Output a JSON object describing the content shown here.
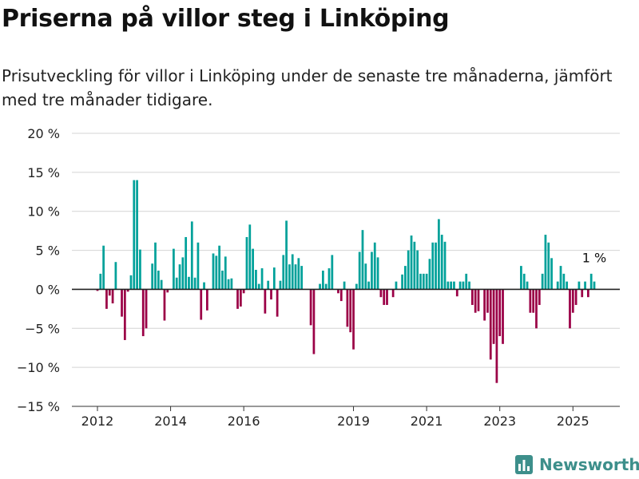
{
  "title": "Priserna på villor steg i Linköping",
  "subtitle": "Prisutveckling för villor i Linköping under de senaste tre månaderna, jämfört med tre månader tidigare.",
  "brand": {
    "name": "Newsworthy",
    "icon": "chart-logo-icon",
    "color": "#3d8f8b"
  },
  "colors": {
    "positive": "#00a19a",
    "negative": "#9b0046",
    "grid": "#d4d4d4",
    "zero": "#222222"
  },
  "chart_data": {
    "type": "bar",
    "title": "Priserna på villor steg i Linköping",
    "xlabel": "",
    "ylabel": "",
    "ylim": [
      -15,
      20
    ],
    "yticks": [
      20,
      15,
      10,
      5,
      0,
      -5,
      -10,
      -15
    ],
    "ytick_labels": [
      "20 %",
      "15 %",
      "10 %",
      "5 %",
      "0 %",
      "−5 %",
      "−10 %",
      "−15 %"
    ],
    "xtick_labels": [
      "2012",
      "2014",
      "2016",
      "2019",
      "2021",
      "2023",
      "2025"
    ],
    "xtick_years": [
      2012,
      2014,
      2016,
      2019,
      2021,
      2023,
      2025
    ],
    "x_start": "2012-01",
    "x_end": "2025-08",
    "grid": true,
    "annotation": {
      "text": "1 %",
      "month": "2025-08",
      "value": 1
    },
    "months": [
      "2012-01",
      "2012-02",
      "2012-03",
      "2012-04",
      "2012-05",
      "2012-06",
      "2012-07",
      "2012-08",
      "2012-09",
      "2012-10",
      "2012-11",
      "2012-12",
      "2013-01",
      "2013-02",
      "2013-03",
      "2013-04",
      "2013-05",
      "2013-06",
      "2013-07",
      "2013-08",
      "2013-09",
      "2013-10",
      "2013-11",
      "2013-12",
      "2014-01",
      "2014-02",
      "2014-03",
      "2014-04",
      "2014-05",
      "2014-06",
      "2014-07",
      "2014-08",
      "2014-09",
      "2014-10",
      "2014-11",
      "2014-12",
      "2015-01",
      "2015-02",
      "2015-03",
      "2015-04",
      "2015-05",
      "2015-06",
      "2015-07",
      "2015-08",
      "2015-09",
      "2015-10",
      "2015-11",
      "2015-12",
      "2016-01",
      "2016-02",
      "2016-03",
      "2016-04",
      "2016-05",
      "2016-06",
      "2016-07",
      "2016-08",
      "2016-09",
      "2016-10",
      "2016-11",
      "2016-12",
      "2017-01",
      "2017-02",
      "2017-03",
      "2017-04",
      "2017-05",
      "2017-06",
      "2017-07",
      "2017-08",
      "2017-09",
      "2017-10",
      "2017-11",
      "2017-12",
      "2018-01",
      "2018-02",
      "2018-03",
      "2018-04",
      "2018-05",
      "2018-06",
      "2018-07",
      "2018-08",
      "2018-09",
      "2018-10",
      "2018-11",
      "2018-12",
      "2019-01",
      "2019-02",
      "2019-03",
      "2019-04",
      "2019-05",
      "2019-06",
      "2019-07",
      "2019-08",
      "2019-09",
      "2019-10",
      "2019-11",
      "2019-12",
      "2020-01",
      "2020-02",
      "2020-03",
      "2020-04",
      "2020-05",
      "2020-06",
      "2020-07",
      "2020-08",
      "2020-09",
      "2020-10",
      "2020-11",
      "2020-12",
      "2021-01",
      "2021-02",
      "2021-03",
      "2021-04",
      "2021-05",
      "2021-06",
      "2021-07",
      "2021-08",
      "2021-09",
      "2021-10",
      "2021-11",
      "2021-12",
      "2022-01",
      "2022-02",
      "2022-03",
      "2022-04",
      "2022-05",
      "2022-06",
      "2022-07",
      "2022-08",
      "2022-09",
      "2022-10",
      "2022-11",
      "2022-12",
      "2023-01",
      "2023-02",
      "2023-03",
      "2023-04",
      "2023-05",
      "2023-06",
      "2023-07",
      "2023-08",
      "2023-09",
      "2023-10",
      "2023-11",
      "2023-12",
      "2024-01",
      "2024-02",
      "2024-03",
      "2024-04",
      "2024-05",
      "2024-06",
      "2024-07",
      "2024-08",
      "2024-09",
      "2024-10",
      "2024-11",
      "2024-12",
      "2025-01",
      "2025-02",
      "2025-03",
      "2025-04",
      "2025-05",
      "2025-06",
      "2025-07",
      "2025-08"
    ],
    "values": [
      -0.2,
      2.0,
      5.6,
      -2.5,
      -0.8,
      -1.8,
      3.5,
      0.0,
      -3.5,
      -6.5,
      -0.3,
      1.8,
      14.0,
      14.0,
      5.1,
      -6.0,
      -5.0,
      0.0,
      3.3,
      6.0,
      2.4,
      1.2,
      -4.0,
      -0.4,
      0.0,
      5.2,
      1.5,
      3.2,
      4.1,
      6.7,
      1.6,
      8.7,
      1.5,
      6.0,
      -3.9,
      0.9,
      -2.7,
      0.0,
      4.6,
      4.3,
      5.6,
      2.4,
      4.2,
      1.3,
      1.4,
      0.0,
      -2.5,
      -2.2,
      -0.5,
      6.7,
      8.3,
      5.2,
      2.5,
      0.7,
      2.7,
      -3.1,
      1.1,
      -1.3,
      2.8,
      -3.5,
      1.1,
      4.4,
      8.8,
      3.2,
      4.5,
      3.2,
      4.0,
      3.0,
      0.0,
      0.0,
      -4.6,
      -8.3,
      0.0,
      0.7,
      2.4,
      0.7,
      2.7,
      4.4,
      0.0,
      -0.5,
      -1.5,
      1.0,
      -4.8,
      -5.5,
      -7.7,
      0.7,
      4.8,
      7.6,
      3.3,
      1.0,
      4.8,
      6.0,
      4.1,
      -1.0,
      -2.0,
      -2.0,
      0.0,
      -1.0,
      1.0,
      0.0,
      1.9,
      3.0,
      5.0,
      6.9,
      6.1,
      5.0,
      2.0,
      2.0,
      2.0,
      3.9,
      6.0,
      6.0,
      9.0,
      7.0,
      6.1,
      1.0,
      1.0,
      1.0,
      -0.9,
      1.0,
      1.0,
      2.0,
      1.0,
      -2.0,
      -3.0,
      -2.8,
      0.0,
      -4.0,
      -3.0,
      -9.0,
      -7.0,
      -12.0,
      -6.0,
      -7.0,
      0.0,
      0.0,
      0.0,
      0.0,
      0.0,
      3.0,
      2.0,
      1.0,
      -3.0,
      -3.0,
      -5.0,
      -2.0,
      2.0,
      7.0,
      6.0,
      4.0,
      0.0,
      1.0,
      3.0,
      2.0,
      1.0,
      -5.0,
      -3.0,
      -2.0,
      1.0,
      -1.0,
      1.0,
      -1.0,
      2.0,
      1.0
    ]
  }
}
